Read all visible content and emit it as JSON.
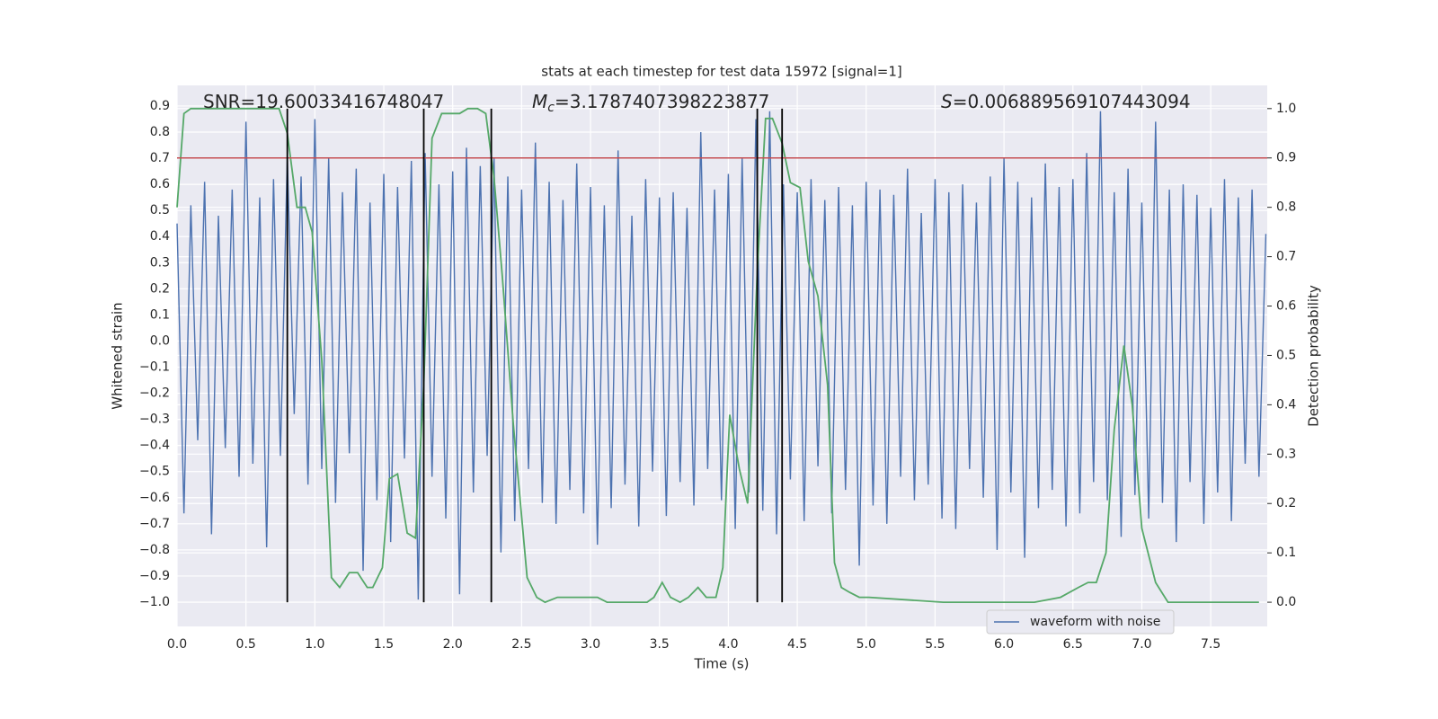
{
  "chart_data": {
    "type": "line",
    "title": "stats at each timestep for test data 15972 [signal=1]",
    "xlabel": "Time (s)",
    "ylabel": "Whitened strain",
    "y2label": "Detection probability",
    "annotations": [
      {
        "parts": [
          {
            "text": "SNR=19.60033416748047",
            "style": "normal"
          }
        ]
      },
      {
        "parts": [
          {
            "text": "M",
            "style": "italic"
          },
          {
            "text": "c",
            "style": "italic-sub"
          },
          {
            "text": "=3.1787407398223877",
            "style": "normal"
          }
        ]
      },
      {
        "parts": [
          {
            "text": "S",
            "style": "italic"
          },
          {
            "text": "=0.006889569107443094",
            "style": "normal"
          }
        ]
      }
    ],
    "xlim": [
      0,
      7.91
    ],
    "ylim": [
      -1.093,
      0.979
    ],
    "y2lim": [
      -0.049,
      1.047
    ],
    "grid": true,
    "xticks": [
      {
        "value": 0,
        "label": "0.0"
      },
      0.5,
      {
        "value": 1,
        "label": "1.0"
      },
      1.5,
      {
        "value": 2,
        "label": "2.0"
      },
      2.5,
      {
        "value": 3,
        "label": "3.0"
      },
      3.5,
      {
        "value": 4,
        "label": "4.0"
      },
      4.5,
      {
        "value": 5,
        "label": "5.0"
      },
      5.5,
      {
        "value": 6,
        "label": "6.0"
      },
      6.5,
      {
        "value": 7,
        "label": "7.0"
      },
      7.5
    ],
    "yticks": [
      {
        "value": -1,
        "label": "−1.0"
      },
      {
        "value": -0.9,
        "label": "−0.9"
      },
      {
        "value": -0.8,
        "label": "−0.8"
      },
      {
        "value": -0.7,
        "label": "−0.7"
      },
      {
        "value": -0.6,
        "label": "−0.6"
      },
      {
        "value": -0.5,
        "label": "−0.5"
      },
      {
        "value": -0.4,
        "label": "−0.4"
      },
      {
        "value": -0.3,
        "label": "−0.3"
      },
      {
        "value": -0.2,
        "label": "−0.2"
      },
      {
        "value": -0.1,
        "label": "−0.1"
      },
      {
        "value": 0,
        "label": "0.0"
      },
      0.1,
      0.2,
      0.3,
      0.4,
      0.5,
      0.6,
      0.7,
      0.8,
      0.9
    ],
    "y2ticks": [
      {
        "value": 0,
        "label": "0.0"
      },
      0.1,
      0.2,
      0.3,
      0.4,
      0.5,
      0.6,
      0.7,
      0.8,
      0.9,
      {
        "value": 1,
        "label": "1.0"
      }
    ],
    "series": [
      {
        "name": "waveform with noise",
        "color": "#4c72b0",
        "axis": "y",
        "x": [
          0,
          0.05,
          0.1,
          0.15,
          0.2,
          0.25,
          0.3,
          0.35,
          0.4,
          0.45,
          0.5,
          0.55,
          0.6,
          0.65,
          0.7,
          0.75,
          0.8,
          0.85,
          0.9,
          0.95,
          1,
          1.05,
          1.1,
          1.15,
          1.2,
          1.25,
          1.3,
          1.35,
          1.4,
          1.45,
          1.5,
          1.55,
          1.6,
          1.65,
          1.7,
          1.75,
          1.8,
          1.85,
          1.9,
          1.95,
          2,
          2.05,
          2.1,
          2.15,
          2.2,
          2.25,
          2.3,
          2.35,
          2.4,
          2.45,
          2.5,
          2.55,
          2.6,
          2.65,
          2.7,
          2.75,
          2.8,
          2.85,
          2.9,
          2.95,
          3,
          3.05,
          3.1,
          3.15,
          3.2,
          3.25,
          3.3,
          3.35,
          3.4,
          3.45,
          3.5,
          3.55,
          3.6,
          3.65,
          3.7,
          3.75,
          3.8,
          3.85,
          3.9,
          3.95,
          4,
          4.05,
          4.1,
          4.15,
          4.2,
          4.25,
          4.3,
          4.35,
          4.4,
          4.45,
          4.5,
          4.55,
          4.6,
          4.65,
          4.7,
          4.75,
          4.8,
          4.85,
          4.9,
          4.95,
          5,
          5.05,
          5.1,
          5.15,
          5.2,
          5.25,
          5.3,
          5.35,
          5.4,
          5.45,
          5.5,
          5.55,
          5.6,
          5.65,
          5.7,
          5.75,
          5.8,
          5.85,
          5.9,
          5.95,
          6,
          6.05,
          6.1,
          6.15,
          6.2,
          6.25,
          6.3,
          6.35,
          6.4,
          6.45,
          6.5,
          6.55,
          6.6,
          6.65,
          6.7,
          6.75,
          6.8,
          6.85,
          6.9,
          6.95,
          7,
          7.05,
          7.1,
          7.15,
          7.2,
          7.25,
          7.3,
          7.35,
          7.4,
          7.45,
          7.5,
          7.55,
          7.6,
          7.65,
          7.7,
          7.75,
          7.8,
          7.85,
          7.9
        ],
        "values": [
          0.45,
          -0.66,
          0.52,
          -0.38,
          0.61,
          -0.74,
          0.48,
          -0.41,
          0.58,
          -0.52,
          0.84,
          -0.47,
          0.55,
          -0.79,
          0.62,
          -0.44,
          0.71,
          -0.28,
          0.63,
          -0.55,
          0.85,
          -0.49,
          0.7,
          -0.62,
          0.57,
          -0.43,
          0.66,
          -0.88,
          0.53,
          -0.61,
          0.64,
          -0.77,
          0.59,
          -0.45,
          0.69,
          -0.99,
          0.72,
          -0.52,
          0.6,
          -0.68,
          0.65,
          -0.97,
          0.74,
          -0.58,
          0.67,
          -0.44,
          0.7,
          -0.81,
          0.63,
          -0.69,
          0.58,
          -0.49,
          0.76,
          -0.62,
          0.61,
          -0.7,
          0.54,
          -0.57,
          0.68,
          -0.66,
          0.59,
          -0.78,
          0.52,
          -0.64,
          0.73,
          -0.55,
          0.48,
          -0.71,
          0.62,
          -0.5,
          0.55,
          -0.67,
          0.57,
          -0.54,
          0.51,
          -0.63,
          0.8,
          -0.49,
          0.58,
          -0.61,
          0.64,
          -0.72,
          0.7,
          -0.58,
          0.85,
          -0.65,
          0.88,
          -0.74,
          0.6,
          -0.53,
          0.57,
          -0.69,
          0.62,
          -0.48,
          0.54,
          -0.66,
          0.59,
          -0.57,
          0.52,
          -0.86,
          0.61,
          -0.63,
          0.58,
          -0.7,
          0.56,
          -0.52,
          0.66,
          -0.61,
          0.49,
          -0.55,
          0.62,
          -0.68,
          0.57,
          -0.72,
          0.6,
          -0.49,
          0.53,
          -0.6,
          0.63,
          -0.8,
          0.7,
          -0.58,
          0.61,
          -0.83,
          0.55,
          -0.64,
          0.68,
          -0.57,
          0.59,
          -0.71,
          0.62,
          -0.66,
          0.72,
          -0.54,
          0.88,
          -0.61,
          0.57,
          -0.75,
          0.66,
          -0.59,
          0.53,
          -0.68,
          0.84,
          -0.62,
          0.58,
          -0.77,
          0.6,
          -0.54,
          0.56,
          -0.7,
          0.51,
          -0.58,
          0.62,
          -0.69,
          0.55,
          -0.47,
          0.58,
          -0.52,
          0.41
        ]
      },
      {
        "color": "#55a868",
        "axis": "y2",
        "x": [
          0,
          0.05,
          0.1,
          0.35,
          0.61,
          0.74,
          0.8,
          0.87,
          0.93,
          0.98,
          1.05,
          1.12,
          1.18,
          1.25,
          1.31,
          1.38,
          1.42,
          1.49,
          1.54,
          1.6,
          1.67,
          1.73,
          1.79,
          1.85,
          1.92,
          1.98,
          2.05,
          2.11,
          2.18,
          2.24,
          2.3,
          2.36,
          2.44,
          2.54,
          2.61,
          2.67,
          2.76,
          2.89,
          2.95,
          3.05,
          3.12,
          3.25,
          3.41,
          3.46,
          3.52,
          3.58,
          3.65,
          3.71,
          3.78,
          3.84,
          3.91,
          3.96,
          4.01,
          4.08,
          4.14,
          4.21,
          4.27,
          4.32,
          4.39,
          4.45,
          4.52,
          4.58,
          4.65,
          4.72,
          4.77,
          4.82,
          4.88,
          4.95,
          5.02,
          5.56,
          6.22,
          6.41,
          6.54,
          6.61,
          6.67,
          6.74,
          6.8,
          6.87,
          6.93,
          7,
          7.1,
          7.19,
          7.85
        ],
        "values": [
          0.8,
          0.99,
          1,
          1,
          1,
          1,
          0.95,
          0.8,
          0.8,
          0.75,
          0.49,
          0.05,
          0.03,
          0.06,
          0.06,
          0.03,
          0.03,
          0.07,
          0.25,
          0.26,
          0.14,
          0.13,
          0.44,
          0.94,
          0.99,
          0.99,
          0.99,
          1,
          1,
          0.99,
          0.86,
          0.66,
          0.36,
          0.05,
          0.01,
          0,
          0.01,
          0.01,
          0.01,
          0.01,
          0,
          0,
          0,
          0.01,
          0.04,
          0.01,
          0,
          0.01,
          0.03,
          0.01,
          0.01,
          0.07,
          0.38,
          0.27,
          0.2,
          0.67,
          0.98,
          0.98,
          0.93,
          0.85,
          0.84,
          0.69,
          0.62,
          0.44,
          0.08,
          0.03,
          0.02,
          0.01,
          0.01,
          0,
          0,
          0.01,
          0.03,
          0.04,
          0.04,
          0.1,
          0.35,
          0.52,
          0.4,
          0.15,
          0.04,
          0,
          0
        ]
      }
    ],
    "hlines": [
      {
        "y": 0.9,
        "axis": "y2",
        "color": "#c44e52"
      }
    ],
    "vlines": {
      "x": [
        0.8,
        1.79,
        2.28,
        4.21,
        4.39
      ],
      "ymin": 0,
      "ymax": 1,
      "axis": "y2",
      "color": "#000000"
    }
  }
}
